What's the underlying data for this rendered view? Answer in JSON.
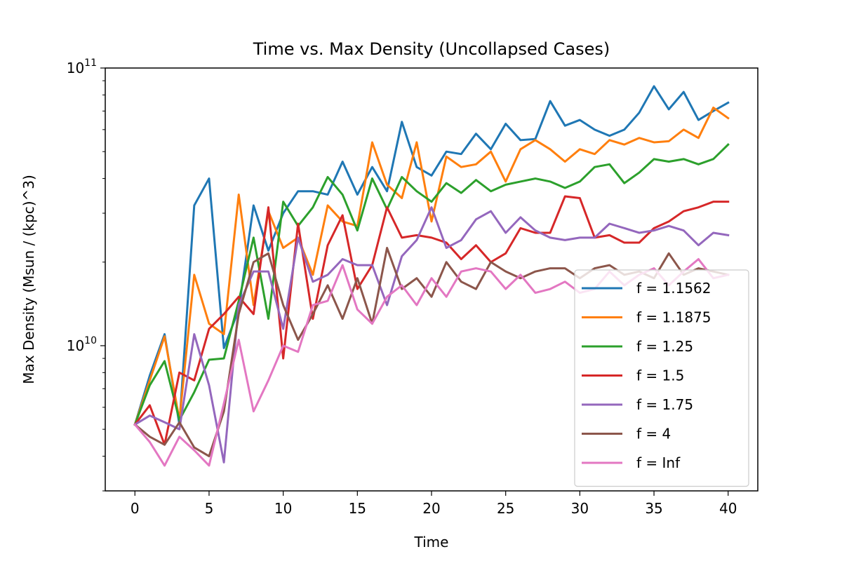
{
  "chart_data": {
    "type": "line",
    "title": "Time vs. Max Density (Uncollapsed Cases)",
    "xlabel": "Time",
    "ylabel": "Max Density (Msun / (kpc)^3)",
    "xlim": [
      -2,
      42
    ],
    "ylim": [
      3000000000.0,
      100000000000.0
    ],
    "yscale": "log",
    "x_ticks": [
      0,
      5,
      10,
      15,
      20,
      25,
      30,
      35,
      40
    ],
    "x_tick_labels": [
      "0",
      "5",
      "10",
      "15",
      "20",
      "25",
      "30",
      "35",
      "40"
    ],
    "y_ticks": [
      10000000000.0,
      100000000000.0
    ],
    "y_tick_labels": [
      {
        "base": "10",
        "exp": "10"
      },
      {
        "base": "10",
        "exp": "11"
      }
    ],
    "grid": false,
    "legend_position": "lower-right",
    "x": [
      0,
      1,
      2,
      3,
      4,
      5,
      6,
      7,
      8,
      9,
      10,
      11,
      12,
      13,
      14,
      15,
      16,
      17,
      18,
      19,
      20,
      21,
      22,
      23,
      24,
      25,
      26,
      27,
      28,
      29,
      30,
      31,
      32,
      33,
      34,
      35,
      36,
      37,
      38,
      39,
      40
    ],
    "series": [
      {
        "name": "f = 1.1562",
        "color": "#1f77b4",
        "values": [
          5200000000.0,
          7800000000.0,
          11000000000.0,
          5200000000.0,
          32000000000.0,
          40000000000.0,
          9800000000.0,
          13500000000.0,
          32000000000.0,
          22000000000.0,
          30000000000.0,
          36000000000.0,
          36000000000.0,
          35000000000.0,
          46000000000.0,
          35000000000.0,
          44000000000.0,
          36000000000.0,
          64000000000.0,
          44000000000.0,
          41000000000.0,
          50000000000.0,
          49000000000.0,
          58000000000.0,
          51000000000.0,
          63000000000.0,
          55000000000.0,
          55500000000.0,
          76000000000.0,
          62000000000.0,
          65000000000.0,
          60000000000.0,
          57000000000.0,
          60000000000.0,
          69000000000.0,
          86000000000.0,
          71000000000.0,
          82000000000.0,
          65000000000.0,
          70000000000.0,
          75000000000.0
        ]
      },
      {
        "name": "f = 1.1875",
        "color": "#ff7f0e",
        "values": [
          5200000000.0,
          7500000000.0,
          10800000000.0,
          5400000000.0,
          18000000000.0,
          12000000000.0,
          11000000000.0,
          35000000000.0,
          14000000000.0,
          30500000000.0,
          22500000000.0,
          24500000000.0,
          18000000000.0,
          32000000000.0,
          28000000000.0,
          27000000000.0,
          54000000000.0,
          38000000000.0,
          34000000000.0,
          54000000000.0,
          28000000000.0,
          48000000000.0,
          44000000000.0,
          45000000000.0,
          50000000000.0,
          39000000000.0,
          51000000000.0,
          55000000000.0,
          51000000000.0,
          46000000000.0,
          51000000000.0,
          49000000000.0,
          55000000000.0,
          53000000000.0,
          56000000000.0,
          54000000000.0,
          54500000000.0,
          60000000000.0,
          56000000000.0,
          72000000000.0,
          66000000000.0
        ]
      },
      {
        "name": "f = 1.25",
        "color": "#2ca02c",
        "values": [
          5200000000.0,
          7200000000.0,
          8800000000.0,
          5400000000.0,
          6800000000.0,
          8900000000.0,
          9000000000.0,
          14500000000.0,
          24500000000.0,
          12500000000.0,
          33000000000.0,
          27000000000.0,
          31500000000.0,
          40500000000.0,
          35000000000.0,
          26000000000.0,
          40000000000.0,
          31000000000.0,
          40500000000.0,
          36000000000.0,
          33000000000.0,
          38500000000.0,
          35500000000.0,
          39500000000.0,
          36000000000.0,
          38000000000.0,
          39000000000.0,
          40000000000.0,
          39000000000.0,
          37000000000.0,
          39000000000.0,
          44000000000.0,
          45000000000.0,
          38500000000.0,
          42000000000.0,
          47000000000.0,
          46000000000.0,
          47000000000.0,
          45000000000.0,
          47000000000.0,
          53000000000.0
        ]
      },
      {
        "name": "f = 1.5",
        "color": "#d62728",
        "values": [
          5200000000.0,
          6100000000.0,
          4400000000.0,
          8000000000.0,
          7500000000.0,
          11500000000.0,
          13000000000.0,
          15000000000.0,
          13000000000.0,
          31500000000.0,
          9000000000.0,
          27500000000.0,
          12500000000.0,
          23000000000.0,
          29500000000.0,
          16000000000.0,
          19500000000.0,
          31500000000.0,
          24500000000.0,
          25000000000.0,
          24500000000.0,
          23500000000.0,
          20500000000.0,
          23000000000.0,
          20000000000.0,
          21500000000.0,
          26500000000.0,
          25500000000.0,
          25500000000.0,
          34500000000.0,
          34000000000.0,
          24500000000.0,
          25000000000.0,
          23500000000.0,
          23500000000.0,
          26500000000.0,
          28000000000.0,
          30500000000.0,
          31500000000.0,
          33000000000.0,
          33000000000.0
        ]
      },
      {
        "name": "f = 1.75",
        "color": "#9467bd",
        "values": [
          5200000000.0,
          5600000000.0,
          5300000000.0,
          5000000000.0,
          11000000000.0,
          7200000000.0,
          3800000000.0,
          14000000000.0,
          18500000000.0,
          18500000000.0,
          11500000000.0,
          24500000000.0,
          17000000000.0,
          18000000000.0,
          20500000000.0,
          19500000000.0,
          19500000000.0,
          14000000000.0,
          21000000000.0,
          24000000000.0,
          31500000000.0,
          22500000000.0,
          24000000000.0,
          28500000000.0,
          30500000000.0,
          25500000000.0,
          29000000000.0,
          26000000000.0,
          24500000000.0,
          24000000000.0,
          24500000000.0,
          24500000000.0,
          27500000000.0,
          26500000000.0,
          25500000000.0,
          26000000000.0,
          27000000000.0,
          26000000000.0,
          23000000000.0,
          25500000000.0,
          25000000000.0
        ]
      },
      {
        "name": "f = 4",
        "color": "#8c564b",
        "values": [
          5200000000.0,
          4700000000.0,
          4400000000.0,
          5300000000.0,
          4300000000.0,
          4000000000.0,
          5800000000.0,
          13000000000.0,
          20000000000.0,
          21500000000.0,
          14000000000.0,
          10500000000.0,
          13000000000.0,
          16500000000.0,
          12500000000.0,
          17500000000.0,
          12000000000.0,
          22500000000.0,
          16000000000.0,
          17500000000.0,
          15000000000.0,
          20000000000.0,
          17000000000.0,
          16000000000.0,
          20000000000.0,
          18500000000.0,
          17500000000.0,
          18500000000.0,
          19000000000.0,
          19000000000.0,
          17500000000.0,
          19000000000.0,
          19500000000.0,
          18000000000.0,
          18500000000.0,
          17500000000.0,
          21500000000.0,
          18000000000.0,
          19000000000.0,
          18500000000.0,
          18000000000.0
        ]
      },
      {
        "name": "f = Inf",
        "color": "#e377c2",
        "values": [
          5200000000.0,
          4500000000.0,
          3700000000.0,
          4700000000.0,
          4200000000.0,
          3700000000.0,
          6200000000.0,
          10500000000.0,
          5800000000.0,
          7500000000.0,
          10000000000.0,
          9500000000.0,
          14000000000.0,
          14500000000.0,
          19500000000.0,
          13500000000.0,
          12000000000.0,
          15000000000.0,
          16500000000.0,
          14000000000.0,
          17500000000.0,
          15000000000.0,
          18500000000.0,
          19000000000.0,
          18500000000.0,
          16000000000.0,
          18000000000.0,
          15500000000.0,
          16000000000.0,
          17000000000.0,
          15500000000.0,
          16000000000.0,
          18500000000.0,
          16500000000.0,
          18000000000.0,
          19000000000.0,
          16500000000.0,
          18500000000.0,
          20500000000.0,
          17500000000.0,
          18000000000.0
        ]
      }
    ]
  }
}
